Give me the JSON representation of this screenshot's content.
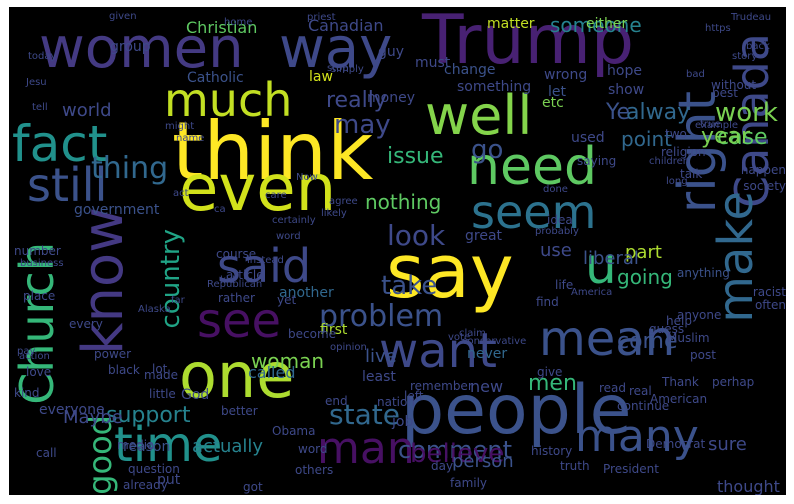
{
  "words": [
    {
      "text": "think",
      "color": "#fde725"
    },
    {
      "text": "say",
      "color": "#fde725"
    },
    {
      "text": "even",
      "color": "#d2e21b"
    },
    {
      "text": "one",
      "color": "#addc30"
    },
    {
      "text": "people",
      "color": "#3b528b"
    },
    {
      "text": "Trump",
      "color": "#482173"
    },
    {
      "text": "women",
      "color": "#443a83"
    },
    {
      "text": "way",
      "color": "#3e4989"
    },
    {
      "text": "well",
      "color": "#84d44b"
    },
    {
      "text": "need",
      "color": "#5ec962"
    },
    {
      "text": "fact",
      "color": "#21918c"
    },
    {
      "text": "much",
      "color": "#c2df23"
    },
    {
      "text": "still",
      "color": "#3b528b"
    },
    {
      "text": "seem",
      "color": "#2c728e"
    },
    {
      "text": "said",
      "color": "#3e4989"
    },
    {
      "text": "know",
      "color": "#443983"
    },
    {
      "text": "see",
      "color": "#471063"
    },
    {
      "text": "want",
      "color": "#3e4989"
    },
    {
      "text": "mean",
      "color": "#3b528b"
    },
    {
      "text": "time",
      "color": "#21918c"
    },
    {
      "text": "man",
      "color": "#471063"
    },
    {
      "text": "many",
      "color": "#3b528b"
    },
    {
      "text": "right",
      "color": "#3b528b"
    },
    {
      "text": "Canada",
      "color": "#3e4989"
    },
    {
      "text": "make",
      "color": "#31688e"
    },
    {
      "text": "u",
      "color": "#35b779"
    },
    {
      "text": "Church",
      "color": "#35b779"
    },
    {
      "text": "thing",
      "color": "#31688e"
    },
    {
      "text": "problem",
      "color": "#3b528b"
    },
    {
      "text": "country",
      "color": "#20a486"
    },
    {
      "text": "good",
      "color": "#35b779"
    },
    {
      "text": "state",
      "color": "#31688e"
    },
    {
      "text": "comment",
      "color": "#3b528b"
    },
    {
      "text": "believe",
      "color": "#471063"
    },
    {
      "text": "woman",
      "color": "#7ad151"
    },
    {
      "text": "support",
      "color": "#26828e"
    },
    {
      "text": "look",
      "color": "#3e4989"
    },
    {
      "text": "really",
      "color": "#3e4989"
    },
    {
      "text": "may",
      "color": "#3e4989"
    },
    {
      "text": "issue",
      "color": "#35b779"
    },
    {
      "text": "go",
      "color": "#3b528b"
    },
    {
      "text": "take",
      "color": "#3b528b"
    },
    {
      "text": "going",
      "color": "#35b779"
    },
    {
      "text": "come",
      "color": "#3b528b"
    },
    {
      "text": "world",
      "color": "#3e4989"
    },
    {
      "text": "work",
      "color": "#7ad151"
    },
    {
      "text": "point",
      "color": "#31688e"
    },
    {
      "text": "Ye",
      "color": "#3b528b"
    },
    {
      "text": "alway",
      "color": "#31688e"
    },
    {
      "text": "case",
      "color": "#5ec962"
    },
    {
      "text": "year",
      "color": "#7ad151"
    },
    {
      "text": "someone",
      "color": "#26828e"
    },
    {
      "text": "Christian",
      "color": "#5ec962"
    },
    {
      "text": "Canadian",
      "color": "#3e4989"
    },
    {
      "text": "group",
      "color": "#3e4989"
    },
    {
      "text": "matter",
      "color": "#c2df23"
    },
    {
      "text": "either",
      "color": "#7ad151"
    },
    {
      "text": "nothing",
      "color": "#5ec962"
    },
    {
      "text": "part",
      "color": "#addc30"
    },
    {
      "text": "use",
      "color": "#3e4989"
    },
    {
      "text": "liberal",
      "color": "#3b528b"
    },
    {
      "text": "government",
      "color": "#3b528b"
    },
    {
      "text": "another",
      "color": "#31688e"
    },
    {
      "text": "men",
      "color": "#35b779"
    },
    {
      "text": "new",
      "color": "#3e4989"
    },
    {
      "text": "live",
      "color": "#3b528b"
    },
    {
      "text": "never",
      "color": "#31688e"
    },
    {
      "text": "called",
      "color": "#31688e"
    },
    {
      "text": "first",
      "color": "#addc30"
    },
    {
      "text": "actually",
      "color": "#26828e"
    },
    {
      "text": "person",
      "color": "#3b528b"
    },
    {
      "text": "sure",
      "color": "#3e4989"
    },
    {
      "text": "Maybe",
      "color": "#3e4989"
    },
    {
      "text": "thought",
      "color": "#3e4989"
    },
    {
      "text": "Catholic",
      "color": "#3b528b"
    },
    {
      "text": "law",
      "color": "#d2e21b"
    },
    {
      "text": "money",
      "color": "#3e4989"
    },
    {
      "text": "something",
      "color": "#3e4989"
    },
    {
      "text": "etc",
      "color": "#7ad151"
    },
    {
      "text": "let",
      "color": "#3b528b"
    },
    {
      "text": "guy",
      "color": "#3e4989"
    },
    {
      "text": "must",
      "color": "#3e4989"
    },
    {
      "text": "change",
      "color": "#3b528b"
    },
    {
      "text": "wrong",
      "color": "#3e4989"
    },
    {
      "text": "hope",
      "color": "#3e4989"
    },
    {
      "text": "show",
      "color": "#3e4989"
    },
    {
      "text": "used",
      "color": "#3e4989"
    },
    {
      "text": "saying",
      "color": "#3e4989"
    },
    {
      "text": "anything",
      "color": "#3b528b"
    },
    {
      "text": "anyone",
      "color": "#3e4989"
    },
    {
      "text": "idea",
      "color": "#3e4989"
    },
    {
      "text": "life",
      "color": "#3e4989"
    },
    {
      "text": "find",
      "color": "#3e4989"
    },
    {
      "text": "great",
      "color": "#3e4989"
    },
    {
      "text": "reason",
      "color": "#3b528b"
    },
    {
      "text": "put",
      "color": "#3e4989"
    },
    {
      "text": "job",
      "color": "#3e4989"
    },
    {
      "text": "least",
      "color": "#3e4989"
    },
    {
      "text": "left",
      "color": "#3e4989"
    },
    {
      "text": "read",
      "color": "#3e4989"
    },
    {
      "text": "give",
      "color": "#3e4989"
    },
    {
      "text": "American",
      "color": "#3e4989"
    },
    {
      "text": "Thank",
      "color": "#3e4989"
    },
    {
      "text": "Muslim",
      "color": "#3e4989"
    },
    {
      "text": "God",
      "color": "#3e4989"
    },
    {
      "text": "little",
      "color": "#3e4989"
    },
    {
      "text": "made",
      "color": "#3e4989"
    },
    {
      "text": "course",
      "color": "#3e4989"
    },
    {
      "text": "article",
      "color": "#3e4989"
    },
    {
      "text": "lot",
      "color": "#3e4989"
    },
    {
      "text": "better",
      "color": "#3e4989"
    },
    {
      "text": "rather",
      "color": "#3e4989"
    },
    {
      "text": "place",
      "color": "#3e4989"
    },
    {
      "text": "love",
      "color": "#3e4989"
    },
    {
      "text": "everyone",
      "color": "#3e4989"
    },
    {
      "text": "call",
      "color": "#3e4989"
    },
    {
      "text": "others",
      "color": "#3e4989"
    },
    {
      "text": "got",
      "color": "#3e4989"
    },
    {
      "text": "word",
      "color": "#3e4989"
    },
    {
      "text": "Obama",
      "color": "#3e4989"
    },
    {
      "text": "President",
      "color": "#3e4989"
    },
    {
      "text": "day",
      "color": "#3e4989"
    },
    {
      "text": "truth",
      "color": "#3e4989"
    },
    {
      "text": "real",
      "color": "#3e4989"
    },
    {
      "text": "post",
      "color": "#3e4989"
    },
    {
      "text": "perhap",
      "color": "#3e4989"
    },
    {
      "text": "Democrat",
      "color": "#3e4989"
    },
    {
      "text": "history",
      "color": "#3e4989"
    },
    {
      "text": "continue",
      "color": "#3e4989"
    },
    {
      "text": "family",
      "color": "#3e4989"
    },
    {
      "text": "remember",
      "color": "#3e4989"
    },
    {
      "text": "nation",
      "color": "#3e4989"
    },
    {
      "text": "end",
      "color": "#3e4989"
    },
    {
      "text": "already",
      "color": "#3e4989"
    },
    {
      "text": "question",
      "color": "#3e4989"
    },
    {
      "text": "media",
      "color": "#3e4989"
    },
    {
      "text": "black",
      "color": "#3e4989"
    },
    {
      "text": "power",
      "color": "#3e4989"
    },
    {
      "text": "kind",
      "color": "#3e4989"
    },
    {
      "text": "every",
      "color": "#3e4989"
    },
    {
      "text": "action",
      "color": "#3e4989"
    },
    {
      "text": "business",
      "color": "#3e4989"
    },
    {
      "text": "number",
      "color": "#3e4989"
    },
    {
      "text": "pay",
      "color": "#3e4989"
    },
    {
      "text": "Alaska",
      "color": "#3e4989"
    },
    {
      "text": "far",
      "color": "#3e4989"
    },
    {
      "text": "Republican",
      "color": "#3e4989"
    },
    {
      "text": "kid",
      "color": "#3e4989"
    },
    {
      "text": "yet",
      "color": "#3e4989"
    },
    {
      "text": "become",
      "color": "#3e4989"
    },
    {
      "text": "probably",
      "color": "#3e4989"
    },
    {
      "text": "opinion",
      "color": "#3e4989"
    },
    {
      "text": "conservative",
      "color": "#3e4989"
    },
    {
      "text": "vote",
      "color": "#3e4989"
    },
    {
      "text": "claim",
      "color": "#3e4989"
    },
    {
      "text": "America",
      "color": "#3e4989"
    },
    {
      "text": "guess",
      "color": "#3e4989"
    },
    {
      "text": "help",
      "color": "#3e4989"
    },
    {
      "text": "racist",
      "color": "#3e4989"
    },
    {
      "text": "often",
      "color": "#3e4989"
    },
    {
      "text": "society",
      "color": "#3e4989"
    },
    {
      "text": "religion",
      "color": "#3e4989"
    },
    {
      "text": "happen",
      "color": "#3e4989"
    },
    {
      "text": "children",
      "color": "#3e4989"
    },
    {
      "text": "done",
      "color": "#3e4989"
    },
    {
      "text": "talk",
      "color": "#3e4989"
    },
    {
      "text": "long",
      "color": "#3e4989"
    },
    {
      "text": "two",
      "color": "#3e4989"
    },
    {
      "text": "example",
      "color": "#3e4989"
    },
    {
      "text": "true",
      "color": "#3e4989"
    },
    {
      "text": "without",
      "color": "#3e4989"
    },
    {
      "text": "best",
      "color": "#3e4989"
    },
    {
      "text": "bad",
      "color": "#3e4989"
    },
    {
      "text": "back",
      "color": "#3e4989"
    },
    {
      "text": "story",
      "color": "#3e4989"
    },
    {
      "text": "Trudeau",
      "color": "#3e4989"
    },
    {
      "text": "https",
      "color": "#3e4989"
    },
    {
      "text": "simply",
      "color": "#3e4989"
    },
    {
      "text": "stop",
      "color": "#3e4989"
    },
    {
      "text": "priest",
      "color": "#3e4989"
    },
    {
      "text": "home",
      "color": "#3e4989"
    },
    {
      "text": "given",
      "color": "#3e4989"
    },
    {
      "text": "today",
      "color": "#3e4989"
    },
    {
      "text": "Jesu",
      "color": "#3e4989"
    },
    {
      "text": "tell",
      "color": "#3e4989"
    },
    {
      "text": "might",
      "color": "#3e4989"
    },
    {
      "text": "name",
      "color": "#3e4989"
    },
    {
      "text": "act",
      "color": "#3e4989"
    },
    {
      "text": "agree",
      "color": "#3e4989"
    },
    {
      "text": "likely",
      "color": "#3e4989"
    },
    {
      "text": "certainly",
      "color": "#3e4989"
    },
    {
      "text": "word",
      "color": "#3e4989"
    },
    {
      "text": "Now",
      "color": "#3e4989"
    },
    {
      "text": "ca",
      "color": "#3e4989"
    },
    {
      "text": "instead",
      "color": "#3e4989"
    },
    {
      "text": "care",
      "color": "#3e4989"
    }
  ]
}
